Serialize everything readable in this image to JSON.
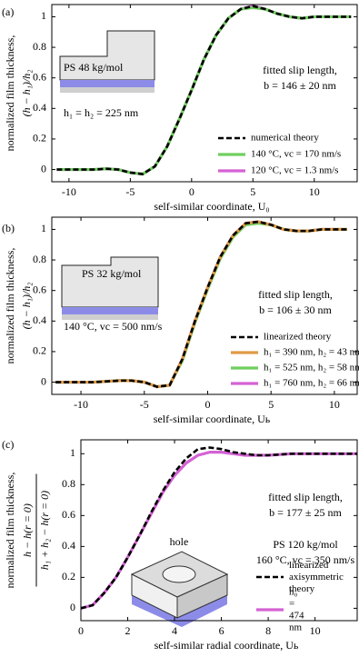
{
  "chart_data": [
    {
      "type": "line",
      "panel_label": "(a)",
      "xlabel": "self-similar coordinate, U₀",
      "ylabel": "normalized film thickness,",
      "ylabel_expr": "(h − h₁)/h₂",
      "xlim": [
        -11.4,
        13.5
      ],
      "ylim": [
        -0.08,
        1.08
      ],
      "xticks": [
        -10,
        -5,
        0,
        5,
        10
      ],
      "yticks": [
        0,
        0.2,
        0.4,
        0.6,
        0.8,
        1
      ],
      "legend": "lower right",
      "annotations": [
        "PS 48 kg/mol",
        "h₁ = h₂ = 225 nm",
        "fitted slip length,",
        "b = 146 ± 20 nm"
      ],
      "series": [
        {
          "name": "120 °C, vc = 1.3 nm/s",
          "color": "#d462d4",
          "dashed": false,
          "x": [
            -11,
            -10,
            -9,
            -8,
            -7,
            -6,
            -5,
            -4,
            -3,
            -2,
            -1,
            0,
            1,
            2,
            3,
            4,
            5,
            6,
            7,
            8,
            9,
            10,
            11,
            12,
            13
          ],
          "values": [
            0,
            0,
            0,
            0,
            0.005,
            0,
            -0.02,
            -0.03,
            0.02,
            0.15,
            0.33,
            0.52,
            0.72,
            0.88,
            0.99,
            1.05,
            1.07,
            1.05,
            1.02,
            1.0,
            0.99,
            1.0,
            1.0,
            1.0,
            1.0
          ]
        },
        {
          "name": "140 °C, vc = 170 nm/s",
          "color": "#6fcf5f",
          "dashed": false,
          "x": [
            -11,
            -10,
            -9,
            -8,
            -7,
            -6,
            -5,
            -4,
            -3,
            -2,
            -1,
            0,
            1,
            2,
            3,
            4,
            5,
            6,
            7,
            8,
            9,
            10,
            11,
            12,
            13
          ],
          "values": [
            0,
            0,
            0,
            0,
            0.005,
            0,
            -0.02,
            -0.03,
            0.02,
            0.15,
            0.33,
            0.52,
            0.72,
            0.88,
            0.99,
            1.05,
            1.06,
            1.05,
            1.02,
            1.0,
            0.99,
            1.0,
            1.0,
            1.0,
            1.0
          ]
        },
        {
          "name": "numerical theory",
          "color": "#000000",
          "dashed": true,
          "x": [
            -11,
            -10,
            -9,
            -8,
            -7,
            -6,
            -5,
            -4,
            -3,
            -2,
            -1,
            0,
            1,
            2,
            3,
            4,
            5,
            6,
            7,
            8,
            9,
            10,
            11,
            12,
            13
          ],
          "values": [
            0,
            0,
            0,
            0,
            0.005,
            0,
            -0.02,
            -0.03,
            0.02,
            0.15,
            0.33,
            0.52,
            0.72,
            0.88,
            0.99,
            1.05,
            1.07,
            1.05,
            1.02,
            1.0,
            0.99,
            1.0,
            1.0,
            1.0,
            1.0
          ]
        }
      ]
    },
    {
      "type": "line",
      "panel_label": "(b)",
      "xlabel": "self-similar coordinate, Uь",
      "ylabel": "normalized film thickness,",
      "ylabel_expr": "(h − h₁)/h₂",
      "xlim": [
        -12.3,
        11.8
      ],
      "ylim": [
        -0.08,
        1.08
      ],
      "xticks": [
        -10,
        -5,
        0,
        5,
        10
      ],
      "yticks": [
        0,
        0.2,
        0.4,
        0.6,
        0.8,
        1
      ],
      "legend": "lower right",
      "annotations": [
        "PS 32 kg/mol",
        "140 °C, vc = 500 nm/s",
        "fitted slip length,",
        "b = 106 ± 30 nm"
      ],
      "series": [
        {
          "name": "h₁ = 760 nm, h₂ = 66 nm",
          "color": "#d462d4",
          "dashed": false,
          "x": [
            -12,
            -11,
            -10,
            -9,
            -8,
            -7,
            -6,
            -5,
            -4,
            -3,
            -2,
            -1,
            0,
            1,
            2,
            3,
            4,
            5,
            6,
            7,
            8,
            9,
            10,
            11
          ],
          "values": [
            0,
            0,
            0,
            0,
            0.005,
            0.01,
            0.01,
            0,
            -0.03,
            -0.02,
            0.15,
            0.4,
            0.62,
            0.82,
            0.96,
            1.04,
            1.05,
            1.03,
            1.0,
            0.99,
            0.99,
            1.0,
            1.0,
            1.0
          ]
        },
        {
          "name": "h₁ = 525 nm, h₂ = 58 nm",
          "color": "#6fcf5f",
          "dashed": false,
          "x": [
            -12,
            -11,
            -10,
            -9,
            -8,
            -7,
            -6,
            -5,
            -4,
            -3,
            -2,
            -1,
            0,
            1,
            2,
            3,
            4,
            5,
            6,
            7,
            8,
            9,
            10,
            11
          ],
          "values": [
            0,
            0,
            0,
            0,
            0.005,
            0.01,
            0.01,
            0,
            -0.03,
            -0.02,
            0.14,
            0.39,
            0.61,
            0.81,
            0.95,
            1.03,
            1.04,
            1.03,
            1.0,
            0.99,
            0.99,
            1.0,
            1.0,
            1.0
          ]
        },
        {
          "name": "h₁ = 390 nm, h₂ = 43 nm",
          "color": "#e09a45",
          "dashed": false,
          "x": [
            -12,
            -11,
            -10,
            -9,
            -8,
            -7,
            -6,
            -5,
            -4,
            -3,
            -2,
            -1,
            0,
            1,
            2,
            3,
            4,
            5,
            6,
            7,
            8,
            9,
            10,
            11
          ],
          "values": [
            0,
            0,
            0,
            0,
            0.005,
            0.01,
            0.01,
            0,
            -0.03,
            -0.02,
            0.15,
            0.4,
            0.62,
            0.82,
            0.96,
            1.04,
            1.05,
            1.03,
            1.0,
            0.99,
            0.99,
            1.0,
            1.0,
            1.0
          ]
        },
        {
          "name": "linearized theory",
          "color": "#000000",
          "dashed": true,
          "x": [
            -12,
            -11,
            -10,
            -9,
            -8,
            -7,
            -6,
            -5,
            -4,
            -3,
            -2,
            -1,
            0,
            1,
            2,
            3,
            4,
            5,
            6,
            7,
            8,
            9,
            10,
            11
          ],
          "values": [
            0,
            0,
            0,
            0,
            0.005,
            0.01,
            0.01,
            0,
            -0.03,
            -0.02,
            0.15,
            0.4,
            0.62,
            0.82,
            0.96,
            1.04,
            1.05,
            1.03,
            1.0,
            0.99,
            0.99,
            1.0,
            1.0,
            1.0
          ]
        }
      ]
    },
    {
      "type": "line",
      "panel_label": "(c)",
      "xlabel": "self-similar radial coordinate, Uь",
      "ylabel": "normalized film thickness,",
      "ylabel_expr": {
        "numerator": "h − h(r = 0)",
        "denominator": "h₁ + h₂ − h(r = 0)"
      },
      "xlim": [
        0,
        11.8
      ],
      "ylim": [
        -0.08,
        1.09
      ],
      "xticks": [
        0,
        2,
        4,
        6,
        8,
        10
      ],
      "yticks": [
        0,
        0.2,
        0.4,
        0.6,
        0.8,
        1
      ],
      "legend": "lower right",
      "annotations": [
        "fitted slip length,",
        "b = 177 ± 25 nm",
        "PS 120 kg/mol",
        "160 °C, vc = 350 nm/s",
        "hole"
      ],
      "series": [
        {
          "name": "h₀ = 474 nm",
          "color": "#d462d4",
          "dashed": false,
          "x": [
            0,
            0.5,
            1,
            1.5,
            2,
            2.5,
            3,
            3.5,
            4,
            4.5,
            5,
            5.5,
            6,
            6.5,
            7,
            7.5,
            8,
            9,
            10,
            11,
            11.8
          ],
          "values": [
            0,
            0.02,
            0.1,
            0.2,
            0.33,
            0.47,
            0.61,
            0.75,
            0.86,
            0.94,
            0.99,
            1.01,
            1.01,
            1.0,
            0.99,
            0.99,
            0.99,
            1.0,
            1.0,
            1.0,
            1.0
          ]
        },
        {
          "name": "linearized axisymmetric theory",
          "color": "#000000",
          "dashed": true,
          "x": [
            0,
            0.5,
            1,
            1.5,
            2,
            2.5,
            3,
            3.5,
            4,
            4.5,
            5,
            5.5,
            6,
            6.5,
            7,
            7.5,
            8,
            9,
            10,
            11,
            11.8
          ],
          "values": [
            0,
            0.02,
            0.1,
            0.2,
            0.33,
            0.47,
            0.62,
            0.76,
            0.88,
            0.97,
            1.03,
            1.04,
            1.03,
            1.01,
            1.0,
            0.99,
            0.99,
            1.0,
            1.0,
            1.0,
            1.0
          ]
        }
      ]
    }
  ]
}
